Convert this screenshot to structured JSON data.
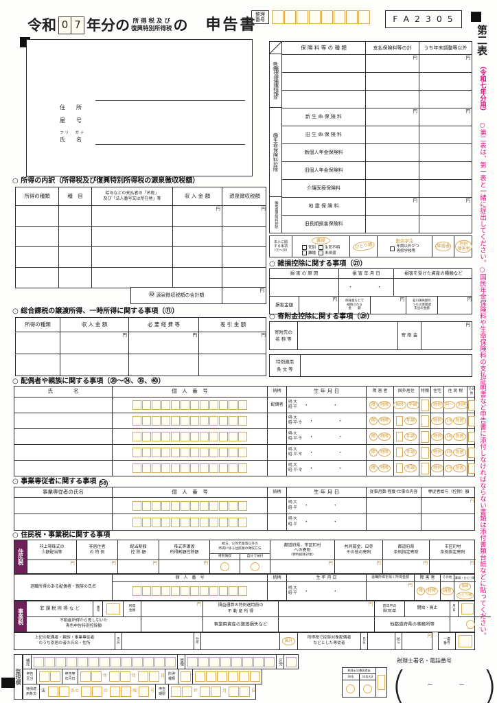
{
  "misc": {
    "yen": "円",
    "dots": "・　・"
  },
  "header": {
    "era": "令和",
    "year_digits": [
      "0",
      "7"
    ],
    "title_mid": "年分の",
    "tax_small_1": "所 得 税 及 び",
    "tax_small_2": "復興特別所得税",
    "no_particle": "の",
    "title_end": "申告書",
    "seiri_1": "整理",
    "seiri_2": "番号",
    "form_code": "F A 2 3 0 5"
  },
  "sidebar": {
    "sheet": "第二表",
    "year_note": "（令和七年分用）",
    "note": "○第二表は、第一表と一緒に提出してください。○国民年金保険料や生命保険料の支払証明書など申告書に添付しなければならない書類は添付書類台紙などに貼ってください。"
  },
  "identity": {
    "address": "住　　所",
    "trade": "屋　　号",
    "furigana": "フリ　ガナ",
    "name": "氏　　名"
  },
  "income": {
    "title": "○ 所得の内訳（所得税及び復興特別所得税の源泉徴収税額）",
    "col_type": "所得の種類",
    "col_item": "種　目",
    "col_payer_1": "給与などの支払者の「名称」",
    "col_payer_2": "及び「法人番号又は所在地」等",
    "col_amount": "収 入 金 額",
    "col_withheld": "源泉徴収税額",
    "total_num": "㊾",
    "total_label": "源泉徴収税額の合計額"
  },
  "capital": {
    "title": "○ 総合課税の譲渡所得、一時所得に関する事項（⑪）",
    "col_type": "所得の種類",
    "col_income": "収 入 金 額",
    "col_expense": "必 要 経 費 等",
    "col_net": "差 引 金 額"
  },
  "insurance": {
    "col_kind": "保 険 料 等 の 種 類",
    "col_total": "支払保険料等の計",
    "col_other": "うち年末調整等以外",
    "social_num": "⑬⑭",
    "social": "社会保険料控除",
    "social_small": "小規模企業共済等掛金控除",
    "life_num": "⑮",
    "life": "生命保険料控除",
    "quake_num": "⑯",
    "quake": "地震保険料控除",
    "life_rows": [
      "新 生 命 保 険 料",
      "旧 生 命 保 険 料",
      "新個人年金保険料",
      "旧個人年金保険料",
      "介護医療保険料"
    ],
    "quake_rows": [
      "地 震 保 険 料",
      "旧長期損害保険料"
    ]
  },
  "self": {
    "label_1": "本人に関",
    "label_2": "する事項",
    "label_3": "（⑰～⑳）",
    "widow": "寡婦",
    "opt_shibetsu": "死別",
    "opt_seishi": "生死不明",
    "opt_rikon": "離婚",
    "opt_mikikan": "未帰還",
    "single_parent": "ひとり親",
    "student": "勤労学生",
    "student_note_1": "年調以外かつ",
    "student_note_2": "専修学校等",
    "disabled": "障害者",
    "sp_disabled_1": "特別",
    "sp_disabled_2": "障害者"
  },
  "casualty": {
    "title": "○ 雑損控除に関する事項（㉗）",
    "col_cause": "損 害 の 原 因",
    "col_date": "損 害 年 月 日",
    "col_asset": "損害を受けた資産の種類など",
    "loss": "損害金額",
    "comp_1": "保険金などで",
    "comp_2": "補填される",
    "comp_3": "金　　額",
    "net_1": "差引損失額の",
    "net_2": "うち災害関連",
    "net_3": "支出の金額"
  },
  "donation": {
    "title": "○ 寄附金控除に関する事項（㉙）",
    "payee_1": "寄附先の",
    "payee_2": "名 称 等",
    "amount": "寄 附 金",
    "special_1": "特例適用",
    "special_2": "条 文 等"
  },
  "dependents": {
    "title": "○ 配偶者や親族に関する事項（⑳～㉔、㉟、㊵）",
    "col_name": "氏　　　　名",
    "col_number": "個　人　番　号",
    "col_rel": "続柄",
    "col_birth": "生 年 月 日",
    "col_disabled": "障 害 者",
    "col_overseas": "国外居住",
    "col_tokushin": "特親",
    "col_housing": "住宅",
    "col_restax": "住 民 税",
    "col_other": "その他",
    "spouse": "配偶者",
    "era_mt": "明·大",
    "era_sh": "昭·平",
    "era_shr": "昭·平·令",
    "b_sho": "障",
    "b_tokusho": "特障",
    "b_kokugai": "国外",
    "b_nencho": "年調",
    "b_tokurei": "特例",
    "b_doitsu": "同一",
    "b_16": "16",
    "b_bekkyo": "別居"
  },
  "employees": {
    "title": "○ 事業専従者に関する事項",
    "title_num": "58",
    "col_name": "事業専従者の氏名",
    "col_number": "個　人　番　号",
    "col_rel": "続柄",
    "col_birth": "生 年 月 日",
    "col_work": "従事月数·程度·仕事の内容",
    "col_salary": "専従者給与（控除）額"
  },
  "localtax": {
    "title": "○ 住民税・事業税に関する事項"
  },
  "resident": {
    "label": "住民税",
    "c1_1": "非上場株式の",
    "c1_2": "少額配当等",
    "c2_1": "非居住者",
    "c2_2": "の 特 例",
    "c3_1": "配当割額",
    "c3_2": "控 除 額",
    "c4_1": "株式等譲渡",
    "c4_2": "所得割額控除額",
    "c5_1": "給与、公的年金等以外の",
    "c5_2": "所得に係る住民税の徴収方法",
    "c5_a": "特別徴収",
    "c5_b": "自分で納付",
    "c6_1": "都道府県、市区町村",
    "c6_2": "への寄附",
    "c6_3": "（特例控除対象）",
    "c7_1": "共同募金、日赤",
    "c7_2": "その他の寄附",
    "c8_1": "都道府県",
    "c8_2": "条例指定寄附",
    "c9_1": "市区町村",
    "c9_2": "条例指定寄附"
  },
  "retire": {
    "name": "退職所得のある配偶者・親族の氏名",
    "col_number": "個　人　番　号",
    "col_rel": "続柄",
    "col_birth": "生 年 月 日",
    "col_income": "退職所得を除く所得金額",
    "col_disabled": "障 害 者",
    "col_other": "その他",
    "col_widow": "寡婦・ひとり親",
    "era_mt": "明·大",
    "era_sh": "昭·平",
    "b_sho": "障",
    "b_tokusho": "特障",
    "b_chosei": "調整",
    "b_kafu": "寡婦",
    "b_hitori": "ひとり親"
  },
  "business": {
    "label": "事業税",
    "r1_label": "非 課 税 所 得 な ど",
    "r1_no": "番号",
    "r1_inc1": "所得",
    "r1_inc2": "金額",
    "r1_fudosan_1": "損益通算の特例適用前の",
    "r1_fudosan_2": "不 動 産 所 得",
    "r1_open_1": "前年中の",
    "r1_open_2": "開(廃)業",
    "r1_open_mid": "開始・廃止",
    "r1_md_1": "月",
    "r1_md_2": "日",
    "r2_label_1": "不動産所得から差し引いた",
    "r2_label_2": "青色申告特別控除額",
    "r2_mid": "事業用資産の譲渡損失など",
    "r2_right": "他都道府県の事務所等",
    "r3_label_1": "上記の配偶者・親族・事業専従者",
    "r3_label_2": "のうち別居の者の氏名・住所",
    "r3_name_1": "氏",
    "r3_name_2": "名",
    "r3_addr_1": "住",
    "r3_addr_2": "所",
    "r3_kokugai": "国外",
    "r3_mid_1": "所得税で控除対象配偶者",
    "r3_mid_2": "などとした専従者",
    "r3_sal_1": "給",
    "r3_sal_2": "与",
    "serial_1": "一連",
    "serial_2": "番号"
  },
  "admin": {
    "pane": "整理欄",
    "hokan": "補完",
    "kanri": "管理",
    "kubun": "区分",
    "sk_1": "申告",
    "sk_2": "区分",
    "date_1": "申告等",
    "date_2": "年月日",
    "y": "年",
    "m": "月",
    "d": "日",
    "inc_1": "所得",
    "inc_2": "種類",
    "tok_1": "特例適",
    "tok_2": "用条文",
    "hou": "法",
    "jouno": "条の",
    "no": "の",
    "kou": "項",
    "gou": "号",
    "limit_1": "申告",
    "limit_2": "期限",
    "z_title": "税理士法書面提出",
    "z_30": "30条",
    "z_33": "33条の2",
    "z_sign": "税理士署名・電話番号",
    "dash": "－"
  }
}
